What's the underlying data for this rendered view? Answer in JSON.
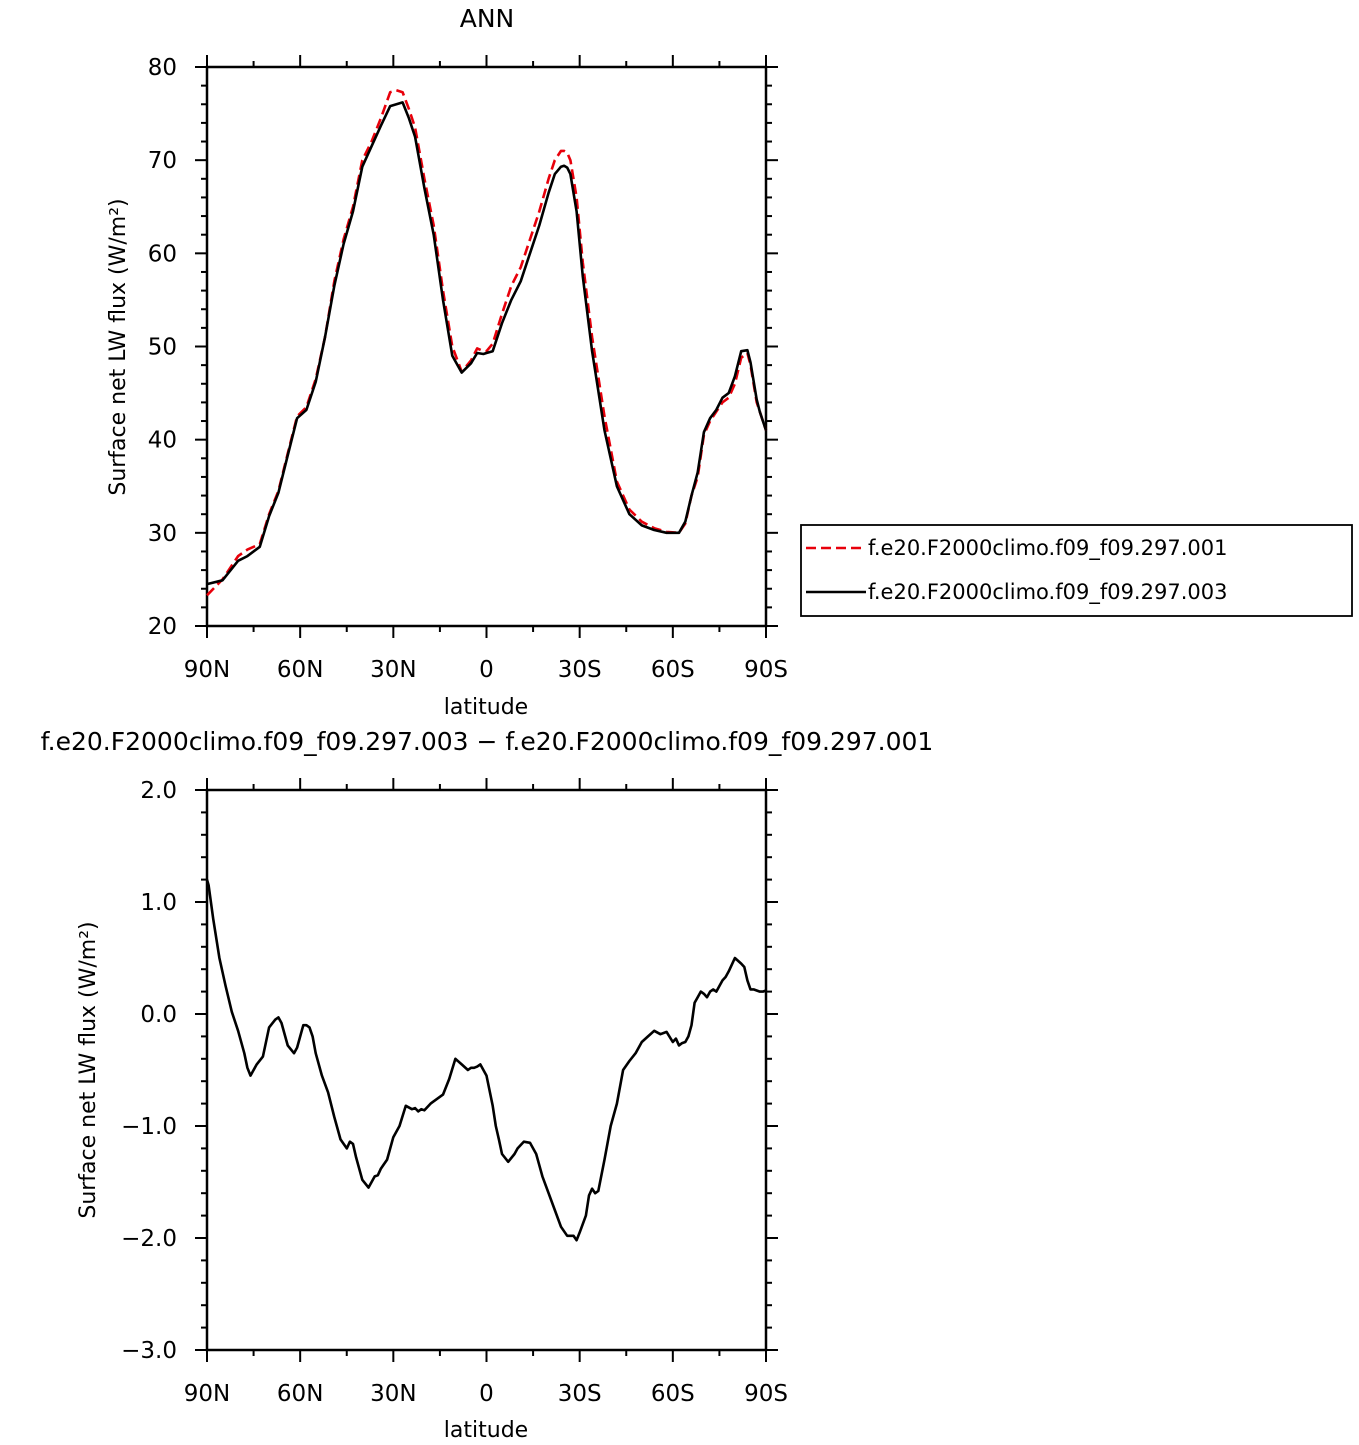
{
  "chart_data": [
    {
      "type": "line",
      "title": "ANN",
      "xlabel": "latitude",
      "ylabel": "Surface net LW flux (W/m²)",
      "xlim": [
        90,
        -90
      ],
      "ylim": [
        20,
        80
      ],
      "x_ticks": [
        {
          "value": 90,
          "label": "90N"
        },
        {
          "value": 60,
          "label": "60N"
        },
        {
          "value": 30,
          "label": "30N"
        },
        {
          "value": 0,
          "label": "0"
        },
        {
          "value": -30,
          "label": "30S"
        },
        {
          "value": -60,
          "label": "60S"
        },
        {
          "value": -90,
          "label": "90S"
        }
      ],
      "y_ticks": [
        {
          "value": 20,
          "label": "20"
        },
        {
          "value": 30,
          "label": "30"
        },
        {
          "value": 40,
          "label": "40"
        },
        {
          "value": 50,
          "label": "50"
        },
        {
          "value": 60,
          "label": "60"
        },
        {
          "value": 70,
          "label": "70"
        },
        {
          "value": 80,
          "label": "80"
        }
      ],
      "grid": false,
      "legend_position": "right",
      "series": [
        {
          "name": "f.e20.F2000climo.f09_f09.297.001",
          "color": "#e8000b",
          "dash": "dashed",
          "x": [
            90,
            85,
            80,
            77,
            73,
            70,
            67,
            64,
            61,
            58,
            55,
            52,
            49,
            46,
            43,
            40,
            37,
            34,
            31,
            29,
            27,
            25,
            23,
            20,
            17,
            14,
            11,
            8,
            5,
            3,
            1,
            0,
            -2,
            -5,
            -8,
            -11,
            -14,
            -17,
            -20,
            -22,
            -24,
            -25,
            -26,
            -27,
            -29,
            -31,
            -34,
            -38,
            -42,
            -46,
            -50,
            -54,
            -58,
            -62,
            -64,
            -66,
            -68,
            -70,
            -72,
            -74,
            -76,
            -78,
            -80,
            -82,
            -84,
            -85,
            -86,
            -87,
            -88,
            -90
          ],
          "y": [
            23.3,
            25.0,
            27.5,
            28.2,
            28.8,
            32.0,
            34.5,
            38.5,
            42.5,
            43.5,
            46.5,
            51,
            57,
            61.5,
            65,
            70,
            72,
            74.5,
            77.3,
            77.5,
            77.3,
            75.5,
            73.5,
            68,
            63,
            56,
            50,
            47.3,
            48.5,
            49.8,
            49.5,
            49.5,
            50.3,
            53.5,
            56.5,
            58.5,
            61.5,
            64.5,
            68,
            70,
            71,
            71,
            70.8,
            70,
            66,
            59,
            51,
            42.5,
            35.5,
            32.5,
            31.2,
            30.5,
            30.1,
            30.0,
            31,
            34,
            36,
            40.5,
            42,
            43,
            44,
            44.5,
            46,
            48.8,
            49.3,
            48,
            46,
            44,
            43,
            41
          ]
        },
        {
          "name": "f.e20.F2000climo.f09_f09.297.003",
          "color": "#000000",
          "dash": "solid",
          "x": [
            90,
            85,
            80,
            77,
            73,
            70,
            67,
            64,
            61,
            58,
            55,
            52,
            49,
            46,
            43,
            40,
            37,
            34,
            31,
            29,
            27,
            25,
            23,
            20,
            17,
            14,
            11,
            8,
            5,
            3,
            1,
            0,
            -2,
            -5,
            -8,
            -11,
            -14,
            -17,
            -20,
            -22,
            -24,
            -25,
            -26,
            -27,
            -29,
            -31,
            -34,
            -38,
            -42,
            -46,
            -50,
            -54,
            -58,
            -62,
            -64,
            -66,
            -68,
            -70,
            -72,
            -74,
            -76,
            -78,
            -80,
            -82,
            -84,
            -85,
            -86,
            -87,
            -88,
            -90
          ],
          "y": [
            24.5,
            24.9,
            27.0,
            27.5,
            28.5,
            31.8,
            34.3,
            38.3,
            42.3,
            43.2,
            46.2,
            51,
            56.5,
            61,
            64.5,
            69.3,
            71.5,
            73.7,
            75.8,
            76,
            76.2,
            74.5,
            72.5,
            67,
            62,
            55,
            49,
            47.2,
            48.2,
            49.3,
            49.2,
            49.3,
            49.5,
            52.5,
            55,
            57,
            60,
            63,
            66.5,
            68.5,
            69.3,
            69.4,
            69.2,
            68.5,
            64.5,
            57.5,
            49.5,
            41,
            35,
            32,
            30.8,
            30.3,
            30.0,
            30.0,
            31.2,
            34,
            36.5,
            40.8,
            42.3,
            43.2,
            44.5,
            45,
            46.8,
            49.5,
            49.6,
            48.3,
            46.3,
            44.3,
            43,
            41
          ]
        }
      ]
    },
    {
      "type": "line",
      "title": "f.e20.F2000climo.f09_f09.297.003 − f.e20.F2000climo.f09_f09.297.001",
      "xlabel": "latitude",
      "ylabel": "Surface net LW flux (W/m²)",
      "xlim": [
        90,
        -90
      ],
      "ylim": [
        -3.0,
        2.0
      ],
      "x_ticks": [
        {
          "value": 90,
          "label": "90N"
        },
        {
          "value": 60,
          "label": "60N"
        },
        {
          "value": 30,
          "label": "30N"
        },
        {
          "value": 0,
          "label": "0"
        },
        {
          "value": -30,
          "label": "30S"
        },
        {
          "value": -60,
          "label": "60S"
        },
        {
          "value": -90,
          "label": "90S"
        }
      ],
      "y_ticks": [
        {
          "value": 2.0,
          "label": "2.0"
        },
        {
          "value": 1.0,
          "label": "1.0"
        },
        {
          "value": 0.0,
          "label": "0.0"
        },
        {
          "value": -1.0,
          "label": "−1.0"
        },
        {
          "value": -2.0,
          "label": "−2.0"
        },
        {
          "value": -3.0,
          "label": "−3.0"
        }
      ],
      "grid": false,
      "series": [
        {
          "color": "#000000",
          "dash": "solid",
          "x": [
            90,
            89.5,
            88,
            86,
            84,
            82,
            80,
            78,
            77,
            76,
            74,
            72,
            70,
            68,
            67,
            66,
            64,
            62,
            61,
            60,
            59,
            58,
            57,
            56,
            55,
            53,
            51,
            49,
            47,
            45,
            44,
            43,
            42,
            40,
            38,
            36,
            35,
            34,
            32,
            30,
            28,
            26,
            24,
            23,
            22,
            21,
            20,
            18,
            16,
            14,
            12,
            10,
            8,
            6,
            5,
            4,
            3,
            2,
            0,
            -2,
            -3,
            -4,
            -5,
            -7,
            -9,
            -10,
            -12,
            -14,
            -16,
            -17,
            -18,
            -20,
            -22,
            -24,
            -26,
            -28,
            -29,
            -30,
            -32,
            -33,
            -34,
            -35,
            -36,
            -38,
            -40,
            -42,
            -44,
            -46,
            -48,
            -50,
            -52,
            -54,
            -56,
            -58,
            -60,
            -61,
            -62,
            -63,
            -64,
            -65,
            -66,
            -67,
            -68,
            -69,
            -70,
            -71,
            -72,
            -73,
            -74,
            -75,
            -76,
            -77,
            -78,
            -80,
            -82,
            -83,
            -84,
            -85,
            -86,
            -87,
            -88,
            -89,
            -90
          ],
          "y": [
            1.2,
            1.15,
            0.85,
            0.5,
            0.25,
            0.02,
            -0.15,
            -0.35,
            -0.48,
            -0.55,
            -0.45,
            -0.38,
            -0.12,
            -0.05,
            -0.03,
            -0.08,
            -0.28,
            -0.35,
            -0.3,
            -0.2,
            -0.1,
            -0.1,
            -0.12,
            -0.2,
            -0.35,
            -0.55,
            -0.7,
            -0.92,
            -1.12,
            -1.2,
            -1.14,
            -1.16,
            -1.28,
            -1.48,
            -1.55,
            -1.45,
            -1.44,
            -1.38,
            -1.3,
            -1.1,
            -1.0,
            -0.82,
            -0.85,
            -0.84,
            -0.87,
            -0.85,
            -0.86,
            -0.8,
            -0.76,
            -0.72,
            -0.58,
            -0.4,
            -0.45,
            -0.5,
            -0.48,
            -0.48,
            -0.47,
            -0.45,
            -0.55,
            -0.82,
            -1.0,
            -1.12,
            -1.25,
            -1.32,
            -1.25,
            -1.2,
            -1.14,
            -1.15,
            -1.25,
            -1.35,
            -1.45,
            -1.6,
            -1.75,
            -1.9,
            -1.98,
            -1.98,
            -2.02,
            -1.95,
            -1.8,
            -1.62,
            -1.56,
            -1.6,
            -1.58,
            -1.3,
            -1.0,
            -0.8,
            -0.5,
            -0.42,
            -0.35,
            -0.25,
            -0.2,
            -0.15,
            -0.18,
            -0.16,
            -0.25,
            -0.22,
            -0.28,
            -0.26,
            -0.25,
            -0.2,
            -0.1,
            0.1,
            0.15,
            0.2,
            0.18,
            0.15,
            0.2,
            0.22,
            0.2,
            0.25,
            0.3,
            0.33,
            0.38,
            0.5,
            0.45,
            0.42,
            0.3,
            0.22,
            0.22,
            0.21,
            0.2,
            0.2,
            0.21
          ]
        }
      ]
    }
  ]
}
